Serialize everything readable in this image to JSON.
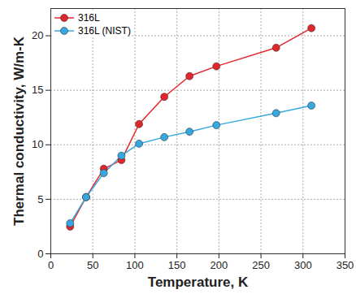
{
  "chart_data": {
    "type": "line",
    "marker": "circle",
    "x_label": "Temperature, K",
    "y_label": "Thermal conductivity, W/m-K",
    "x": [
      23,
      42,
      63,
      84,
      105,
      135,
      165,
      197,
      268,
      310
    ],
    "series": [
      {
        "name": "316L",
        "color": "#e3262b",
        "values": [
          2.5,
          5.2,
          7.8,
          8.6,
          11.9,
          14.4,
          16.3,
          17.2,
          18.9,
          20.7
        ]
      },
      {
        "name": "316L (NIST)",
        "color": "#35a9df",
        "values": [
          2.8,
          5.2,
          7.4,
          9.0,
          10.1,
          10.7,
          11.2,
          11.8,
          12.9,
          13.6
        ]
      }
    ],
    "xlim": [
      0,
      350
    ],
    "xticks": [
      0,
      50,
      100,
      150,
      200,
      250,
      300,
      350
    ],
    "ylim": [
      0,
      22.5
    ],
    "yticks": [
      0,
      5,
      10,
      15,
      20
    ],
    "grid": true,
    "legend": "top-left"
  }
}
